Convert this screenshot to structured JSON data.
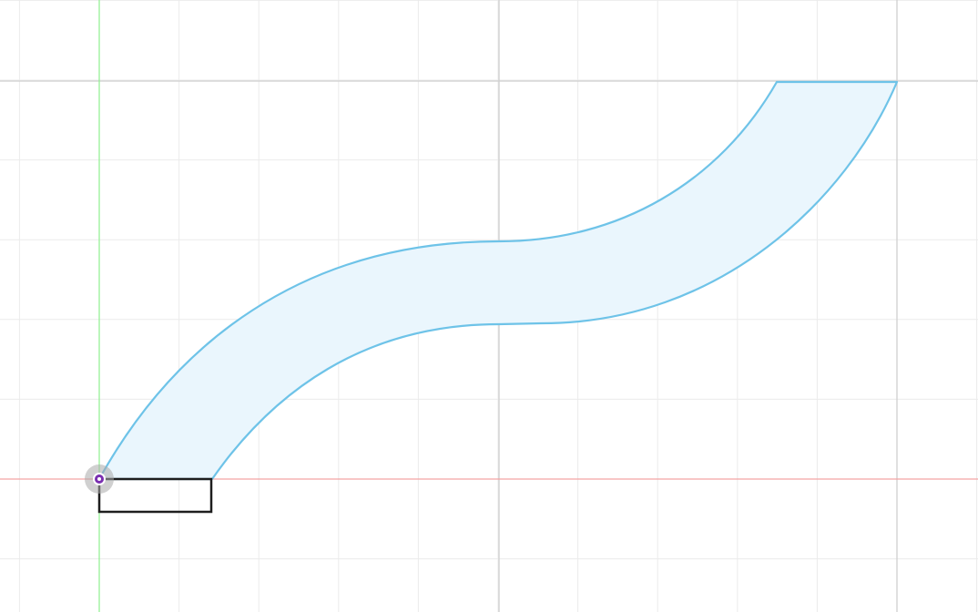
{
  "app": {
    "view": "sketch-canvas"
  },
  "colors": {
    "background": "#ffffff",
    "minor_grid": "#ebebeb",
    "major_grid": "#cfcfcf",
    "x_axis": "#f3a3a3",
    "y_axis": "#8ef08e",
    "profile_stroke": "#6ec3e8",
    "profile_fill": "#eaf6fd",
    "rectangle_stroke": "#1e1e1e",
    "origin_halo": "#a9a9a9",
    "origin_center": "#7a2fb0"
  },
  "sketch": {
    "entities": [
      {
        "type": "curved-profile",
        "constraint_state": "fully-defined"
      },
      {
        "type": "rectangle",
        "constraint_state": "under-defined"
      },
      {
        "type": "origin-point"
      }
    ]
  },
  "icons": {
    "origin": "origin-point-icon"
  }
}
